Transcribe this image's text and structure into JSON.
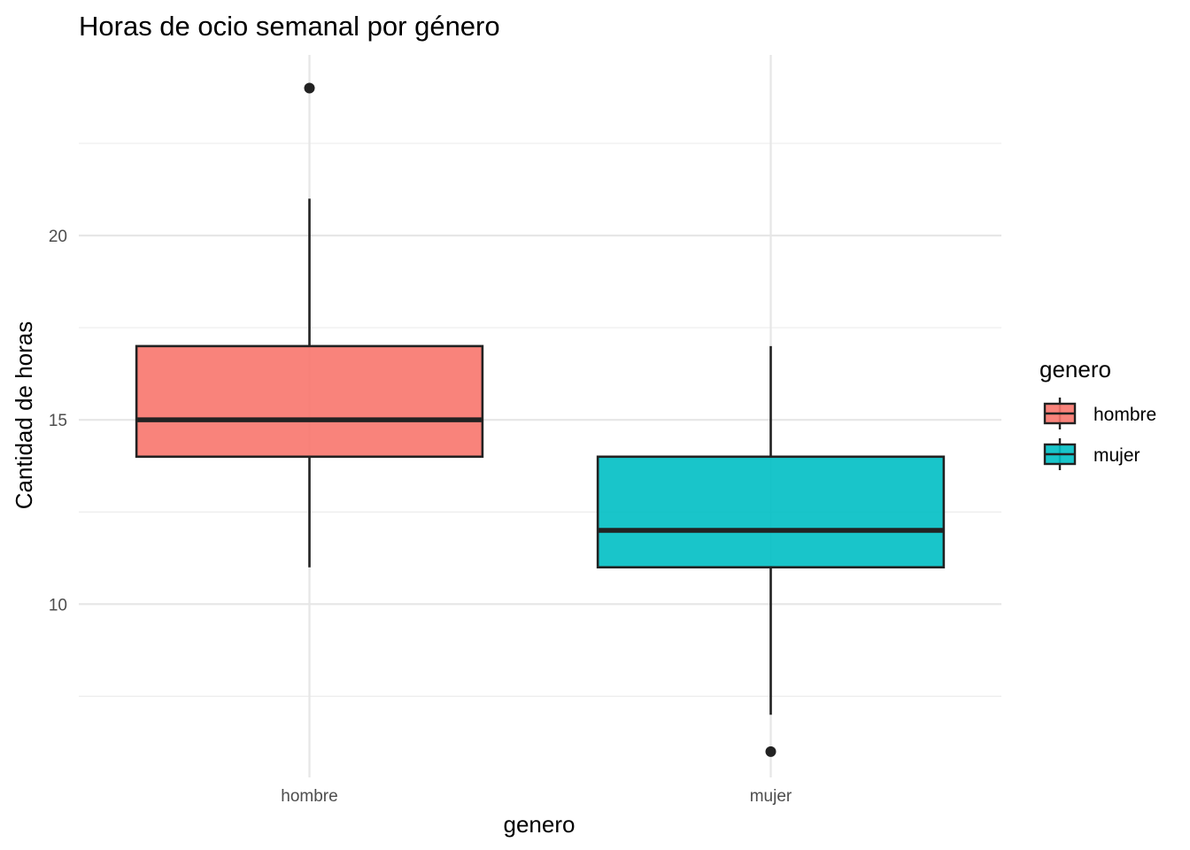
{
  "chart_data": {
    "type": "boxplot",
    "title": "Horas de ocio semanal por género",
    "xlabel": "genero",
    "ylabel": "Cantidad de horas",
    "categories": [
      "hombre",
      "mujer"
    ],
    "ylim": [
      5.3,
      24.9
    ],
    "yticks": [
      10,
      15,
      20
    ],
    "yticks_labels": [
      "10",
      "15",
      "20"
    ],
    "grid": true,
    "legend": {
      "title": "genero",
      "position": "right",
      "entries": [
        {
          "label": "hombre",
          "color": "#F8766D"
        },
        {
          "label": "mujer",
          "color": "#00BFC4"
        }
      ]
    },
    "series": [
      {
        "name": "hombre",
        "color": "#F8766D",
        "whisker_low": 11,
        "q1": 14,
        "median": 15,
        "q3": 17,
        "whisker_high": 21,
        "outliers": [
          24
        ]
      },
      {
        "name": "mujer",
        "color": "#00BFC4",
        "whisker_low": 7,
        "q1": 11,
        "median": 12,
        "q3": 14,
        "whisker_high": 17,
        "outliers": [
          6
        ]
      }
    ]
  }
}
